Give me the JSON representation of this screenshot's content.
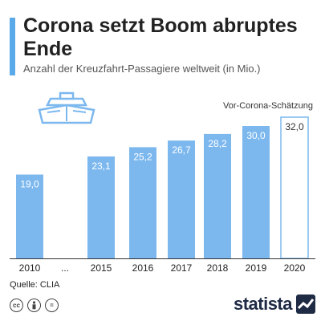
{
  "header": {
    "title": "Corona setzt Boom abruptes Ende",
    "subtitle": "Anzahl der Kreuzfahrt-Passagiere weltweit (in Mio.)"
  },
  "chart_data": {
    "type": "bar",
    "categories": [
      "2010",
      "...",
      "2015",
      "2016",
      "2017",
      "2018",
      "2019",
      "2020"
    ],
    "values": [
      19.0,
      null,
      23.1,
      25.2,
      26.7,
      28.2,
      30.0,
      32.0
    ],
    "data_labels": [
      "19,0",
      "",
      "23,1",
      "25,2",
      "26,7",
      "28,2",
      "30,0",
      "32,0"
    ],
    "estimate_index": 7,
    "annotation": "Vor-Corona-Schätzung",
    "ylim": [
      0,
      32
    ],
    "colors": {
      "bar": "#7cb8ee",
      "estimate_fill": "#ffffff",
      "estimate_stroke": "#7cb8ee",
      "axis": "#333333"
    },
    "icon": "cruise-ship-icon"
  },
  "footer": {
    "source": "Quelle: CLIA",
    "license_icons": [
      "cc",
      "by",
      "="
    ],
    "brand": "statista"
  }
}
